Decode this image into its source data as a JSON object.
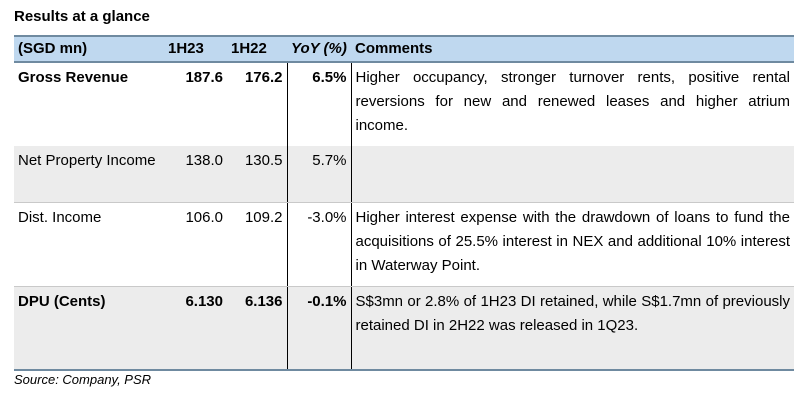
{
  "title": "Results at a glance",
  "header": {
    "label": "(SGD mn)",
    "h1": "1H23",
    "h2": "1H22",
    "yoy": "YoY (%)",
    "comments": "Comments"
  },
  "rows": [
    {
      "label": "Gross Revenue",
      "v1": "187.6",
      "v2": "176.2",
      "yoy": "6.5%",
      "comment": "Higher occupancy, stronger turnover rents, positive rental reversions for new and renewed leases and higher atrium income."
    },
    {
      "label": "Net Property Income",
      "v1": "138.0",
      "v2": "130.5",
      "yoy": "5.7%",
      "comment": ""
    },
    {
      "label": "Dist. Income",
      "v1": "106.0",
      "v2": "109.2",
      "yoy": "-3.0%",
      "comment": "Higher interest expense with the drawdown of loans to fund the acquisitions of 25.5% interest in NEX and additional 10% interest in Waterway Point."
    },
    {
      "label": "DPU (Cents)",
      "v1": "6.130",
      "v2": "6.136",
      "yoy": "-0.1%",
      "comment": "S$3mn or 2.8% of 1H23 DI retained, while S$1.7mn of previously retained DI in 2H22 was released in 1Q23."
    }
  ],
  "source": "Source: Company, PSR",
  "colors": {
    "header_bg": "#bfd8ef",
    "row_gray": "#ececec",
    "rule": "#6f8aa0"
  }
}
